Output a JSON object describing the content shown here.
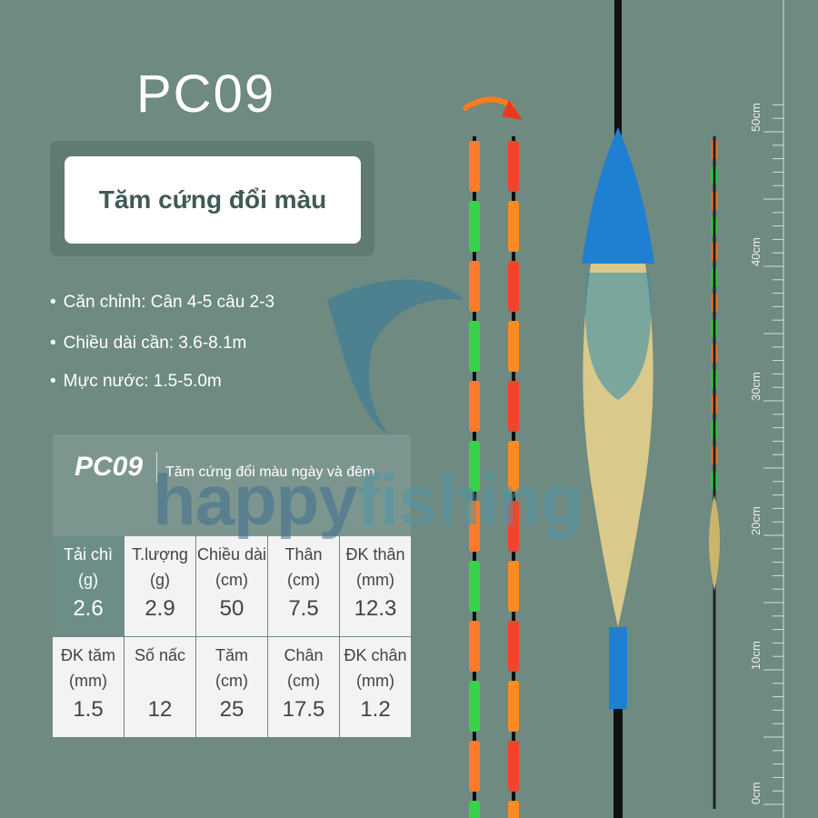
{
  "header": {
    "title": "PC09",
    "badge": "Tăm cứng đổi màu"
  },
  "bullets": [
    "Căn chỉnh: Cân 4-5 câu 2-3",
    "Chiều dài cần: 3.6-8.1m",
    "Mực nước: 1.5-5.0m"
  ],
  "table": {
    "model": "PC09",
    "subtitle": "Tăm cứng đổi màu ngày và đêm",
    "rows": [
      {
        "headers": [
          [
            "Tải chì",
            "(g)"
          ],
          [
            "T.lượng",
            "(g)"
          ],
          [
            "Chiều dài",
            "(cm)"
          ],
          [
            "Thân",
            "(cm)"
          ],
          [
            "ĐK thân",
            "(mm)"
          ]
        ],
        "values": [
          "2.6",
          "2.9",
          "50",
          "7.5",
          "12.3"
        ]
      },
      {
        "headers": [
          [
            "ĐK tăm",
            "(mm)"
          ],
          [
            "Số nấc"
          ],
          [
            "Tăm",
            "(cm)"
          ],
          [
            "Chân",
            "(cm)"
          ],
          [
            "ĐK chân",
            "(mm)"
          ]
        ],
        "values": [
          "1.5",
          "12",
          "25",
          "17.5",
          "1.2"
        ]
      }
    ]
  },
  "watermark": [
    "happy",
    "fishing"
  ],
  "ruler": [
    "0cm",
    "10cm",
    "20cm",
    "30cm",
    "40cm",
    "50cm"
  ]
}
